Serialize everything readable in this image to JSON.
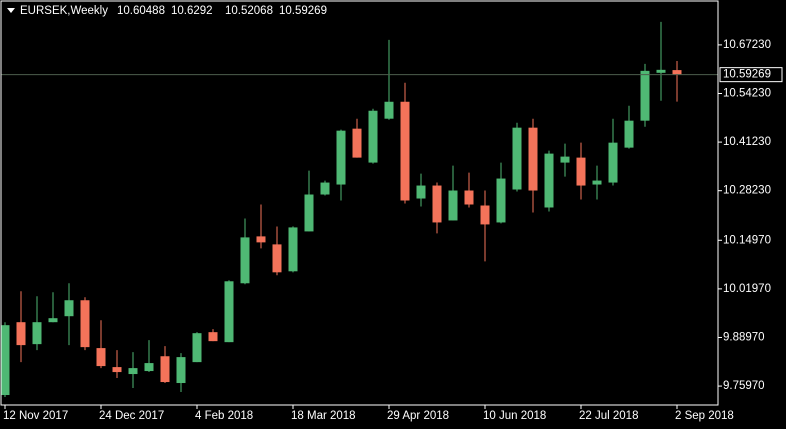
{
  "chart_data": {
    "type": "candlestick",
    "title": "EURSEK,Weekly",
    "categories": [
      "12 Nov 2017",
      null,
      null,
      null,
      null,
      null,
      "24 Dec 2017",
      null,
      null,
      null,
      null,
      null,
      "4 Feb 2018",
      null,
      null,
      null,
      null,
      null,
      "18 Mar 2018",
      null,
      null,
      null,
      null,
      null,
      "29 Apr 2018",
      null,
      null,
      null,
      null,
      null,
      "10 Jun 2018",
      null,
      null,
      null,
      null,
      null,
      "22 Jul 2018",
      null,
      null,
      null,
      null,
      null,
      "2 Sep 2018"
    ],
    "open": [
      9.7358,
      9.9306,
      9.8719,
      9.9306,
      9.9466,
      9.9893,
      9.8613,
      9.8105,
      9.7919,
      9.7999,
      9.8395,
      9.7679,
      9.8238,
      9.9039,
      9.8772,
      10.0347,
      10.1601,
      10.1387,
      10.0667,
      10.1734,
      10.2721,
      10.2988,
      10.4482,
      10.3575,
      10.4749,
      10.5202,
      10.2614,
      10.2961,
      10.2027,
      10.2828,
      10.2427,
      10.1974,
      10.2855,
      10.4509,
      10.2374,
      10.3575,
      10.3708,
      10.2988,
      10.3041,
      10.3975,
      10.4696,
      10.5976,
      10.60488
    ],
    "high": [
      9.9306,
      10.0133,
      10.0,
      10.0106,
      10.0347,
      9.9973,
      9.9359,
      9.8559,
      9.8505,
      9.8826,
      9.8665,
      9.8479,
      9.9039,
      9.9119,
      10.0427,
      10.2081,
      10.2454,
      10.1867,
      10.1868,
      10.3361,
      10.3094,
      10.4455,
      10.4749,
      10.5015,
      10.6856,
      10.5709,
      10.3281,
      10.3041,
      10.3495,
      10.3308,
      10.2828,
      10.3575,
      10.4642,
      10.4749,
      10.3895,
      10.4082,
      10.4108,
      10.3495,
      10.4749,
      10.5095,
      10.6216,
      10.7337,
      10.6292
    ],
    "low": [
      9.7305,
      9.8238,
      9.8559,
      9.9306,
      9.8693,
      9.8559,
      9.8078,
      9.7812,
      9.7545,
      9.7972,
      9.7679,
      9.7438,
      9.8238,
      9.8799,
      9.8772,
      10.032,
      10.1281,
      10.056,
      10.064,
      10.1734,
      10.2694,
      10.2561,
      10.3708,
      10.3548,
      10.4722,
      10.2481,
      10.2401,
      10.1681,
      10.2027,
      10.2374,
      10.0934,
      10.1948,
      10.2801,
      10.2241,
      10.2267,
      10.3201,
      10.2587,
      10.2587,
      10.2961,
      10.3948,
      10.4535,
      10.5229,
      10.52068
    ],
    "close": [
      9.9226,
      9.8693,
      9.9306,
      9.9413,
      9.9893,
      9.8639,
      9.8132,
      9.7972,
      9.8078,
      9.8212,
      9.7705,
      9.8372,
      9.9012,
      9.8799,
      10.04,
      10.1574,
      10.1441,
      10.064,
      10.1841,
      10.2721,
      10.3041,
      10.4429,
      10.3708,
      10.4962,
      10.5202,
      10.2561,
      10.2961,
      10.1974,
      10.2828,
      10.2454,
      10.1921,
      10.3148,
      10.4509,
      10.2828,
      10.3815,
      10.3735,
      10.2961,
      10.3094,
      10.4108,
      10.4696,
      10.6029,
      10.6056,
      10.59269
    ],
    "ylim": [
      9.7091,
      10.7897
    ],
    "yticks": [
      {
        "value": 10.6723,
        "label": "10.67230"
      },
      {
        "value": 10.5423,
        "label": "10.54230"
      },
      {
        "value": 10.4123,
        "label": "10.41230"
      },
      {
        "value": 10.2823,
        "label": "10.28230"
      },
      {
        "value": 10.1497,
        "label": "10.14970"
      },
      {
        "value": 10.0197,
        "label": "10.01970"
      },
      {
        "value": 9.8897,
        "label": "9.88970"
      },
      {
        "value": 9.7597,
        "label": "9.75970"
      }
    ],
    "up_color": "#4fb874",
    "down_color": "#f4735a",
    "background": "#000000",
    "price_line_color": "#4d5e4d"
  }
}
